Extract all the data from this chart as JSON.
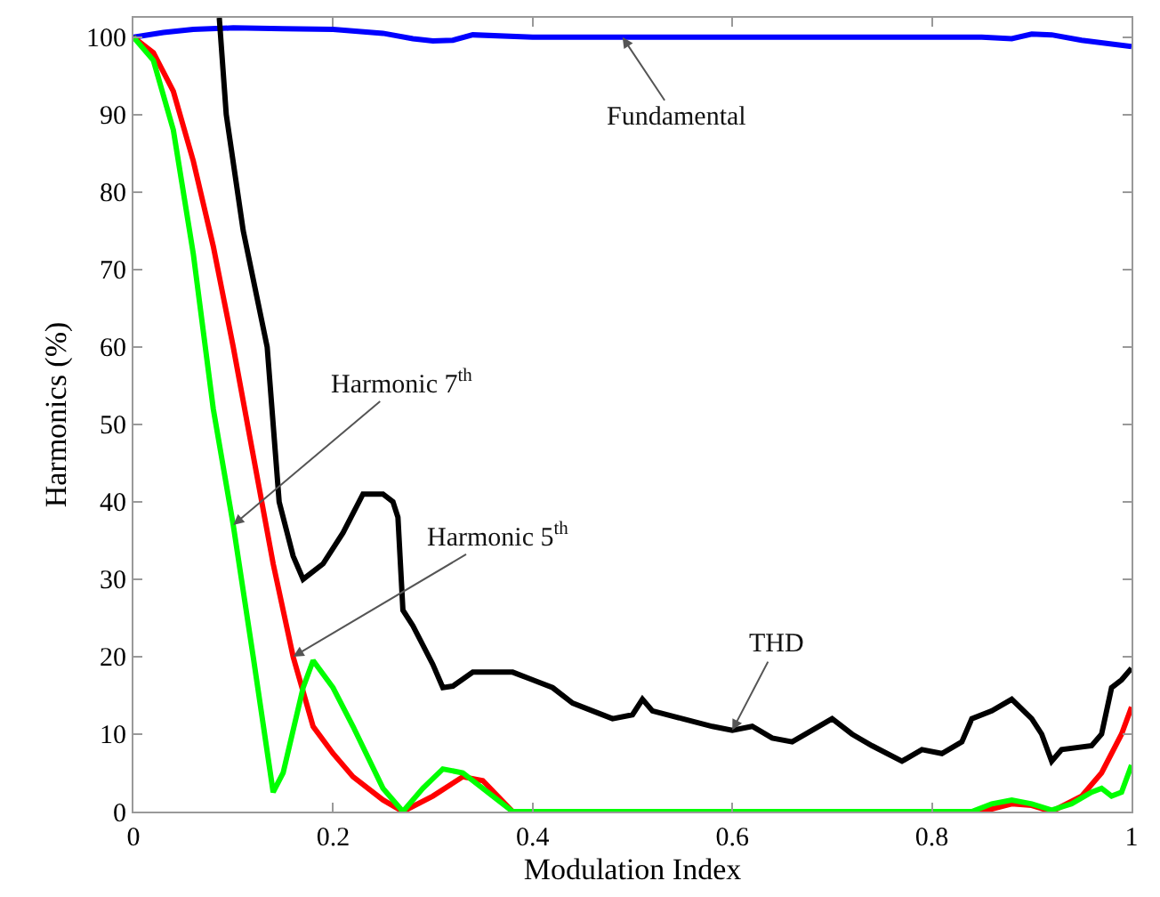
{
  "chart_data": {
    "type": "line",
    "xlabel": "Modulation Index",
    "ylabel": "Harmonics (%)",
    "xlim": [
      0,
      1
    ],
    "ylim": [
      0,
      102.5
    ],
    "xticks": [
      0,
      0.2,
      0.4,
      0.6,
      0.8,
      1
    ],
    "yticks": [
      0,
      10,
      20,
      30,
      40,
      50,
      60,
      70,
      80,
      90,
      100
    ],
    "marker": "none",
    "line_style": "solid",
    "series": [
      {
        "color": "#0000ff",
        "x": [
          0,
          0.03,
          0.06,
          0.1,
          0.15,
          0.2,
          0.25,
          0.28,
          0.3,
          0.32,
          0.34,
          0.4,
          0.5,
          0.6,
          0.7,
          0.8,
          0.85,
          0.88,
          0.9,
          0.92,
          0.95,
          1.0
        ],
        "values": [
          100,
          100.6,
          101,
          101.2,
          101.1,
          101,
          100.5,
          99.8,
          99.5,
          99.6,
          100.3,
          100,
          100,
          100,
          100,
          100,
          100,
          99.8,
          100.4,
          100.3,
          99.6,
          98.8
        ]
      },
      {
        "color": "#ff0000",
        "x": [
          0,
          0.02,
          0.04,
          0.06,
          0.08,
          0.1,
          0.12,
          0.14,
          0.16,
          0.18,
          0.2,
          0.22,
          0.25,
          0.27,
          0.3,
          0.33,
          0.35,
          0.38,
          0.5,
          0.6,
          0.7,
          0.8,
          0.85,
          0.88,
          0.9,
          0.92,
          0.95,
          0.97,
          0.99,
          1.0
        ],
        "values": [
          100,
          98,
          93,
          84,
          73,
          60,
          46,
          32,
          20,
          11,
          7.5,
          4.5,
          1.5,
          0,
          2,
          4.5,
          4,
          0,
          0,
          0,
          0,
          0,
          0,
          1,
          0.8,
          0,
          2,
          5,
          10,
          13.5
        ]
      },
      {
        "color": "#00ff00",
        "x": [
          0,
          0.02,
          0.04,
          0.06,
          0.08,
          0.1,
          0.12,
          0.14,
          0.15,
          0.17,
          0.18,
          0.2,
          0.22,
          0.25,
          0.27,
          0.29,
          0.31,
          0.33,
          0.36,
          0.38,
          0.5,
          0.6,
          0.7,
          0.8,
          0.84,
          0.86,
          0.88,
          0.9,
          0.92,
          0.94,
          0.96,
          0.97,
          0.98,
          0.99,
          1.0
        ],
        "values": [
          100,
          97,
          88,
          72,
          52,
          37,
          20,
          2.5,
          5,
          16,
          19.5,
          16,
          11,
          3,
          0,
          3,
          5.5,
          5,
          2,
          0,
          0,
          0,
          0,
          0,
          0,
          1,
          1.5,
          1,
          0.2,
          1,
          2.5,
          3,
          2,
          2.5,
          6
        ]
      },
      {
        "color": "#000000",
        "x": [
          0.086,
          0.093,
          0.11,
          0.134,
          0.146,
          0.16,
          0.17,
          0.19,
          0.21,
          0.23,
          0.25,
          0.26,
          0.265,
          0.27,
          0.28,
          0.3,
          0.31,
          0.32,
          0.34,
          0.36,
          0.38,
          0.4,
          0.42,
          0.44,
          0.46,
          0.48,
          0.5,
          0.51,
          0.52,
          0.55,
          0.58,
          0.6,
          0.62,
          0.64,
          0.66,
          0.68,
          0.7,
          0.72,
          0.74,
          0.77,
          0.79,
          0.81,
          0.83,
          0.84,
          0.86,
          0.88,
          0.9,
          0.91,
          0.92,
          0.93,
          0.96,
          0.97,
          0.98,
          0.99,
          1.0
        ],
        "values": [
          102.5,
          90,
          75,
          60,
          40,
          33,
          30,
          32,
          36,
          41,
          41,
          40,
          38,
          26,
          24,
          19,
          16,
          16.2,
          18,
          18,
          18,
          17,
          16,
          14,
          13,
          12,
          12.5,
          14.5,
          13,
          12,
          11,
          10.5,
          11,
          9.5,
          9,
          10.5,
          12,
          10,
          8.5,
          6.5,
          8,
          7.5,
          9,
          12,
          13,
          14.5,
          12,
          10,
          6.5,
          8,
          8.5,
          10,
          16,
          17,
          18.5
        ]
      }
    ],
    "annotations": [
      {
        "text": "Fundamental",
        "x": 0.49,
        "y": 100
      },
      {
        "text": "Harmonic 7$^{th}$",
        "x": 0.1,
        "y": 37
      },
      {
        "text": "Harmonic 5$^{th}$",
        "x": 0.16,
        "y": 20
      },
      {
        "text": "THD",
        "x": 0.6,
        "y": 10.5
      }
    ]
  }
}
